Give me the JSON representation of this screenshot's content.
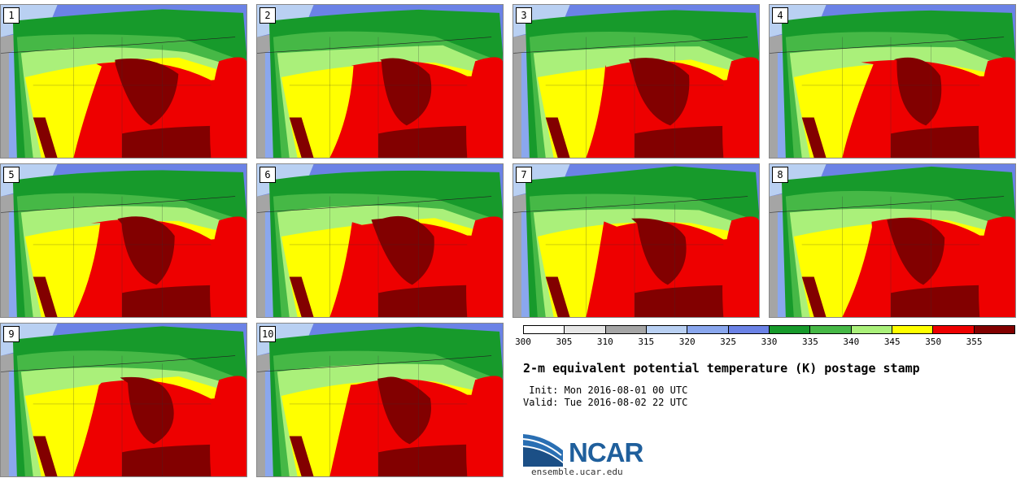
{
  "stamps": [
    {
      "label": "1"
    },
    {
      "label": "2"
    },
    {
      "label": "3"
    },
    {
      "label": "4"
    },
    {
      "label": "5"
    },
    {
      "label": "6"
    },
    {
      "label": "7"
    },
    {
      "label": "8"
    },
    {
      "label": "9"
    },
    {
      "label": "10"
    }
  ],
  "colorbar": {
    "ticks": [
      "300",
      "305",
      "310",
      "315",
      "320",
      "325",
      "330",
      "335",
      "340",
      "345",
      "350",
      "355"
    ],
    "colors": [
      "#ffffff",
      "#e6e6e6",
      "#a5a5a5",
      "#b9d0f2",
      "#8aa7ee",
      "#6b82e6",
      "#179a2b",
      "#46b846",
      "#aaf07a",
      "#ffff00",
      "#ee0000",
      "#820000"
    ]
  },
  "title": "2-m equivalent potential temperature (K) postage stamp",
  "init_label": " Init: Mon 2016-08-01 00 UTC",
  "valid_label": "Valid: Tue 2016-08-02 22 UTC",
  "logo_text": "NCAR",
  "url": "ensemble.ucar.edu",
  "icons": {
    "logo": "ncar-logo-icon"
  }
}
